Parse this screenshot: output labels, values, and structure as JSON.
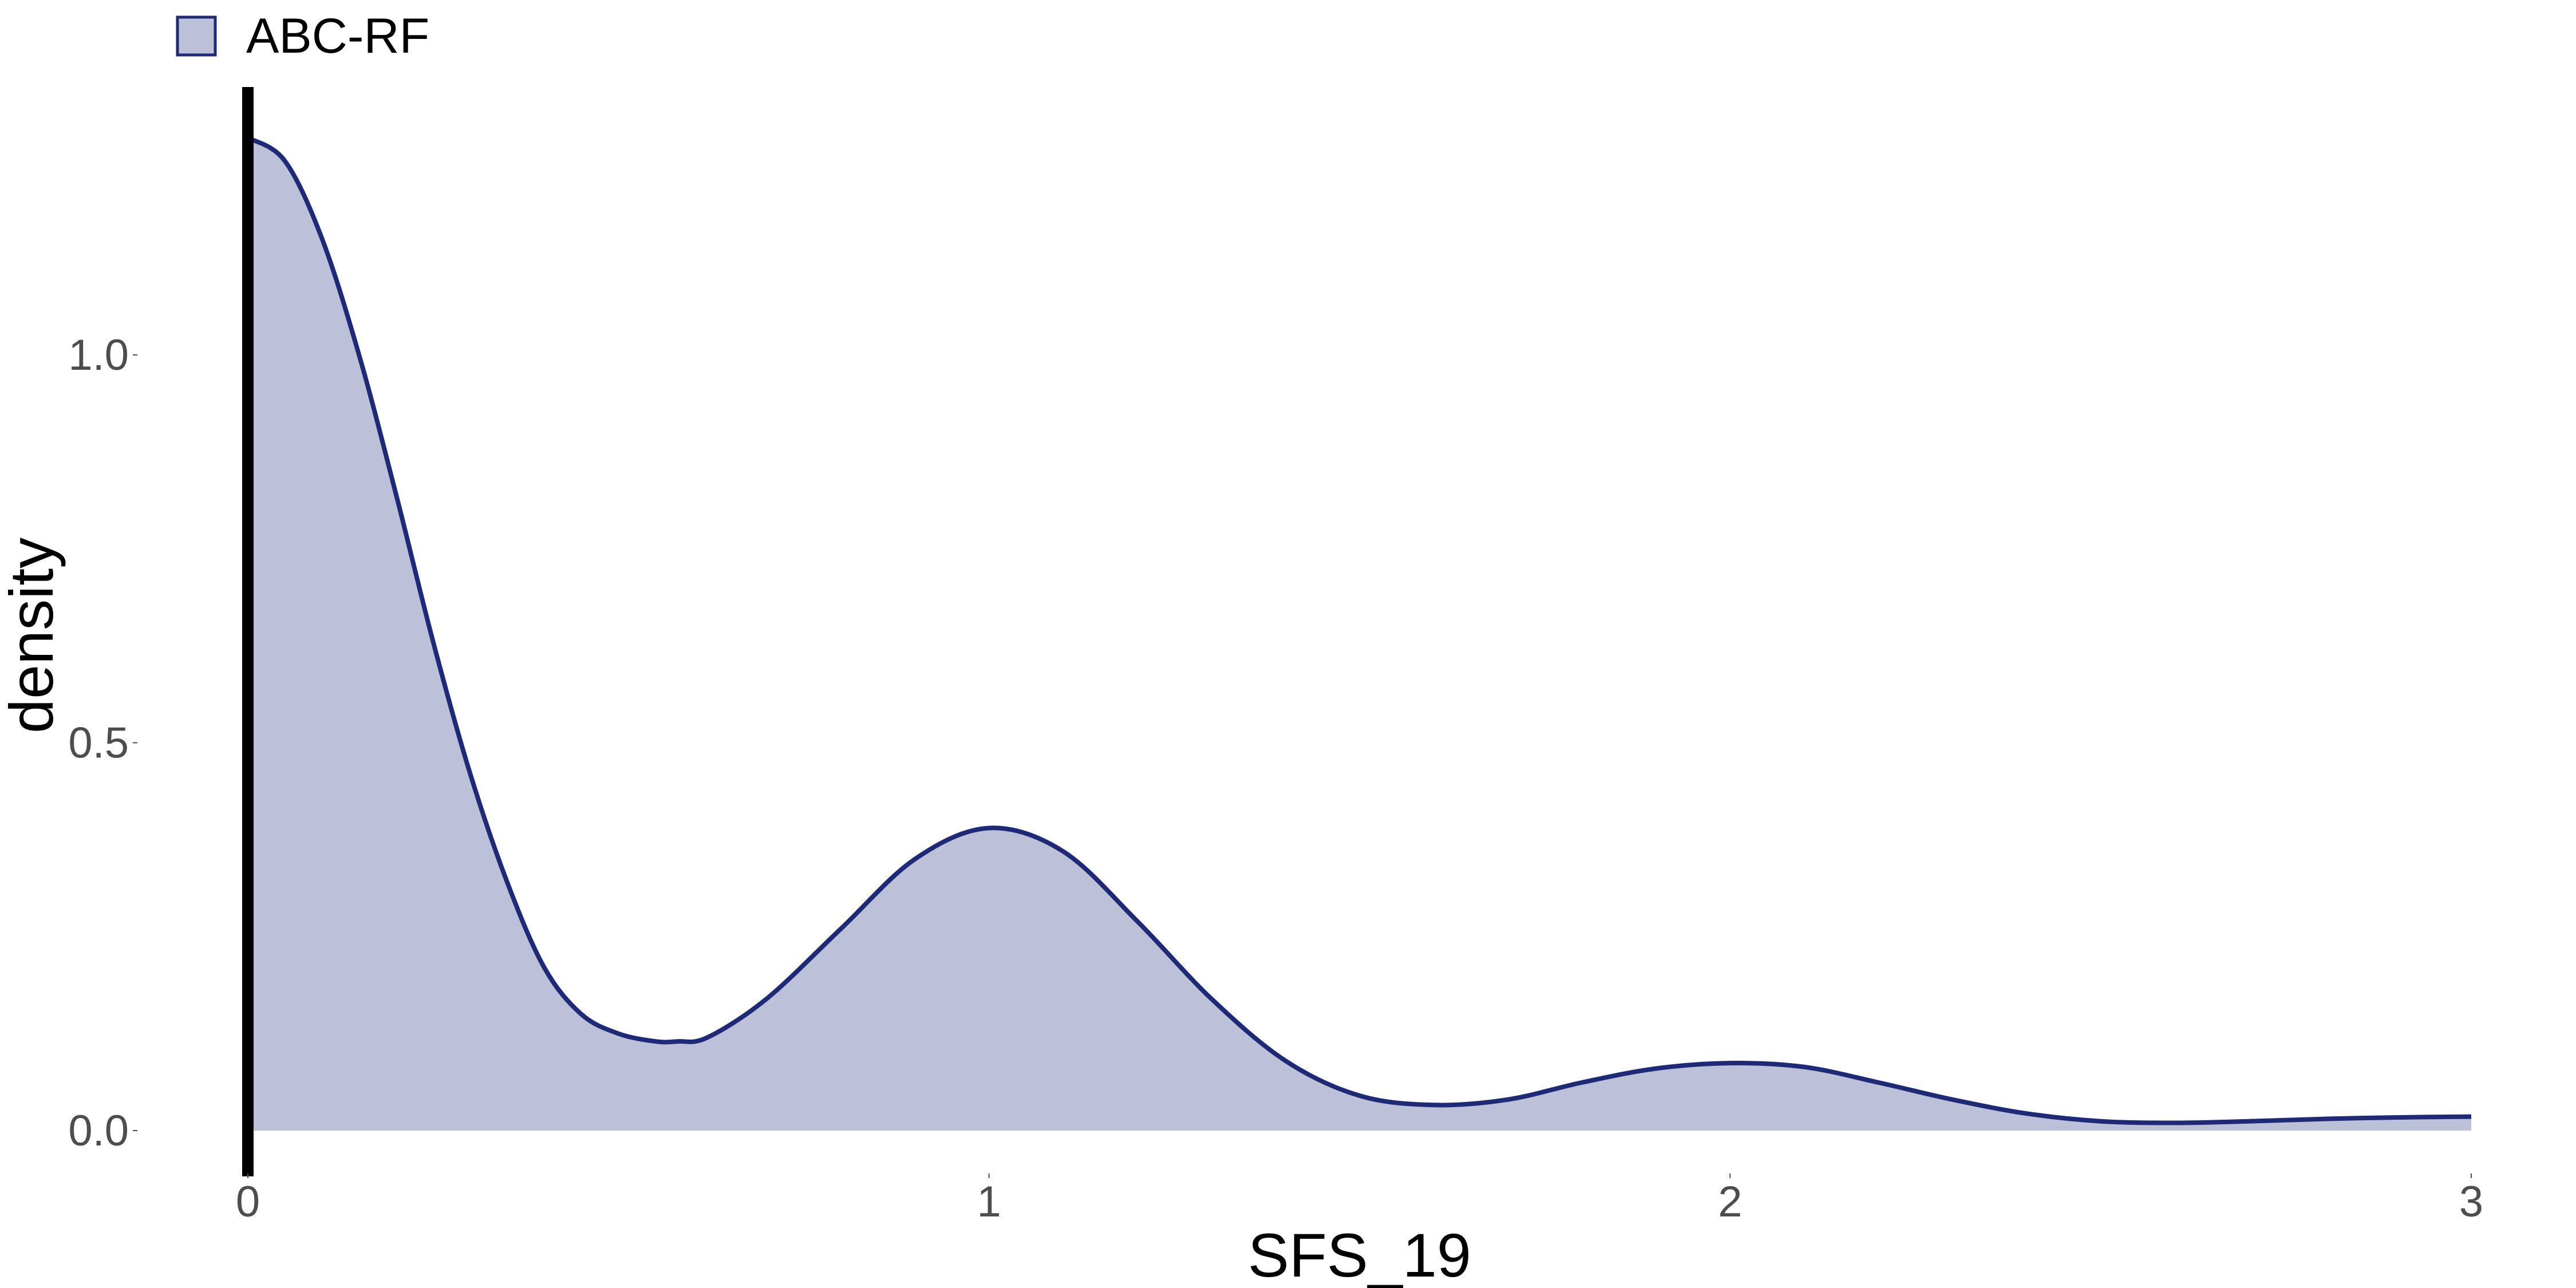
{
  "chart_data": {
    "type": "area",
    "title": "",
    "xlabel": "SFS_19",
    "ylabel": "density",
    "xlim": [
      0,
      3
    ],
    "ylim": [
      0,
      1.3
    ],
    "x_ticks": [
      0,
      1,
      2,
      3
    ],
    "x_tick_labels": [
      "0",
      "1",
      "2",
      "3"
    ],
    "y_ticks": [
      0.0,
      0.5,
      1.0
    ],
    "y_tick_labels": [
      "0.0",
      "0.5",
      "1.0"
    ],
    "grid": false,
    "legend": {
      "position": "top-left",
      "entries": [
        "ABC-RF"
      ]
    },
    "vertical_line": {
      "x": 0,
      "color": "#000000"
    },
    "series": [
      {
        "name": "ABC-RF",
        "line_color": "#1e2a78",
        "fill_color": "#bcc1d9",
        "x": [
          0,
          0.05,
          0.1,
          0.15,
          0.2,
          0.25,
          0.3,
          0.35,
          0.4,
          0.45,
          0.5,
          0.55,
          0.58,
          0.62,
          0.7,
          0.8,
          0.9,
          1.0,
          1.1,
          1.2,
          1.3,
          1.4,
          1.5,
          1.6,
          1.7,
          1.8,
          1.9,
          2.0,
          2.1,
          2.2,
          2.3,
          2.4,
          2.5,
          2.6,
          2.7,
          2.8,
          2.9,
          3.0
        ],
        "y": [
          1.28,
          1.25,
          1.15,
          1.0,
          0.82,
          0.63,
          0.46,
          0.32,
          0.21,
          0.15,
          0.125,
          0.115,
          0.115,
          0.12,
          0.17,
          0.26,
          0.35,
          0.39,
          0.36,
          0.27,
          0.17,
          0.09,
          0.045,
          0.033,
          0.04,
          0.062,
          0.08,
          0.087,
          0.082,
          0.062,
          0.04,
          0.022,
          0.012,
          0.01,
          0.012,
          0.015,
          0.017,
          0.018
        ]
      }
    ]
  }
}
